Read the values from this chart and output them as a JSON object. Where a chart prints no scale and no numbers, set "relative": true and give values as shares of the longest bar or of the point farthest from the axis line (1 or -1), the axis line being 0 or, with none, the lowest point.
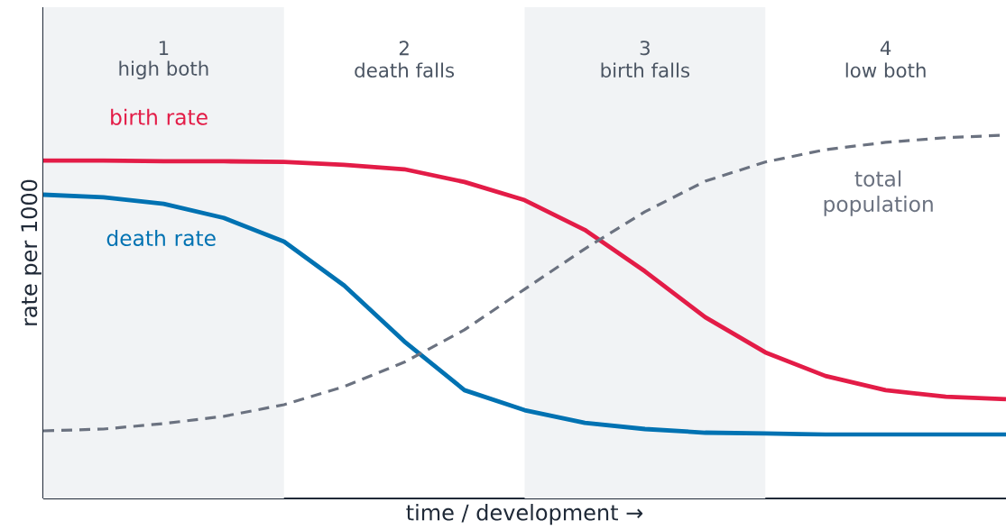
{
  "chart_data": {
    "type": "line",
    "relative": true,
    "xlabel": "time / development  →",
    "ylabel": "rate per 1000",
    "tick_labels": false,
    "marker": "none",
    "categories": [
      null,
      null,
      null,
      null,
      null,
      null,
      null,
      null,
      null,
      null,
      null,
      null,
      null,
      null,
      null,
      null,
      null
    ],
    "series": [
      {
        "name": "birth rate",
        "color": "#e31c47",
        "line_style": "solid",
        "values": [
          0.93,
          0.93,
          0.928,
          0.928,
          0.926,
          0.918,
          0.906,
          0.871,
          0.821,
          0.739,
          0.625,
          0.499,
          0.402,
          0.337,
          0.298,
          0.28,
          0.273
        ]
      },
      {
        "name": "death rate",
        "color": "#0072b2",
        "line_style": "solid",
        "values": [
          0.836,
          0.829,
          0.811,
          0.772,
          0.707,
          0.586,
          0.432,
          0.298,
          0.243,
          0.208,
          0.191,
          0.181,
          0.179,
          0.176,
          0.176,
          0.176,
          0.176
        ]
      },
      {
        "name": "total population",
        "color": "#6b7280",
        "line_style": "dashed",
        "values": [
          0.186,
          0.191,
          0.206,
          0.226,
          0.258,
          0.308,
          0.375,
          0.464,
          0.576,
          0.687,
          0.789,
          0.873,
          0.926,
          0.96,
          0.98,
          0.993,
          1.0
        ]
      }
    ],
    "annotations": [
      "1",
      "high both",
      "2",
      "death falls",
      "3",
      "birth falls",
      "4",
      "low both"
    ]
  }
}
